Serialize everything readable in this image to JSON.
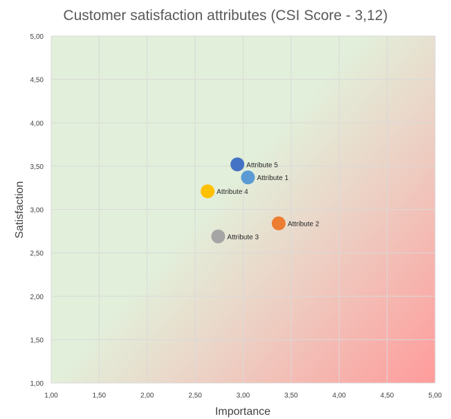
{
  "chart_data": {
    "type": "scatter",
    "title": "Customer satisfaction attributes (CSI Score - 3,12)",
    "xlabel": "Importance",
    "ylabel": "Satisfaction",
    "xlim": [
      1.0,
      5.0
    ],
    "ylim": [
      1.0,
      5.0
    ],
    "x_ticks": [
      "1,00",
      "1,50",
      "2,00",
      "2,50",
      "3,00",
      "3,50",
      "4,00",
      "4,50",
      "5,00"
    ],
    "y_ticks": [
      "1,00",
      "1,50",
      "2,00",
      "2,50",
      "3,00",
      "3,50",
      "4,00",
      "4,50",
      "5,00"
    ],
    "x_tick_values": [
      1.0,
      1.5,
      2.0,
      2.5,
      3.0,
      3.5,
      4.0,
      4.5,
      5.0
    ],
    "y_tick_values": [
      1.0,
      1.5,
      2.0,
      2.5,
      3.0,
      3.5,
      4.0,
      4.5,
      5.0
    ],
    "grid": true,
    "legend": "none",
    "background": {
      "type": "gradient",
      "good_color": "#e2efda",
      "neutral_color": "#ead7c9",
      "bad_color": "#ff9b9b"
    },
    "points": [
      {
        "name": "Attribute 1",
        "x": 3.05,
        "y": 3.37,
        "color": "#5b9bd5"
      },
      {
        "name": "Attribute 2",
        "x": 3.37,
        "y": 2.84,
        "color": "#ed7d31"
      },
      {
        "name": "Attribute 3",
        "x": 2.74,
        "y": 2.69,
        "color": "#a5a5a5"
      },
      {
        "name": "Attribute 4",
        "x": 2.63,
        "y": 3.21,
        "color": "#ffc000"
      },
      {
        "name": "Attribute 5",
        "x": 2.94,
        "y": 3.52,
        "color": "#4472c4"
      }
    ]
  }
}
